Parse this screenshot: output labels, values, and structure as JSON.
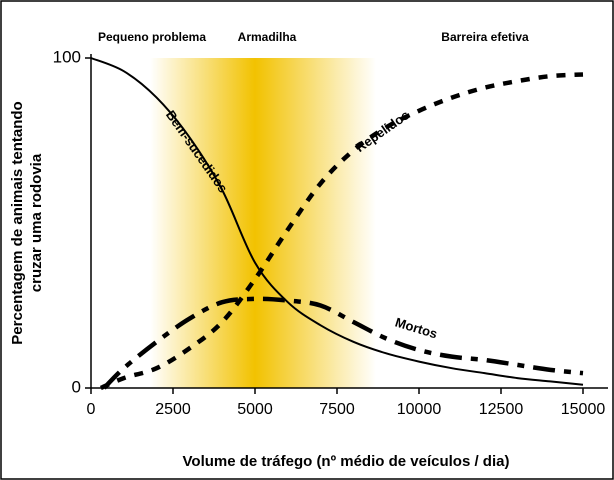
{
  "chart_data": {
    "type": "line",
    "xlabel": "Volume de tráfego (nº médio de veículos / dia)",
    "ylabel": [
      "Percentagem de animais tentando",
      "cruzar uma rodovia"
    ],
    "zones": [
      "Pequeno problema",
      "Armadilha",
      "Barreira efetiva"
    ],
    "highlight": {
      "from": 1800,
      "peak": 5000,
      "to": 8700,
      "color": "#f2c200"
    },
    "xlim": [
      0,
      15000
    ],
    "xticks": [
      0,
      2500,
      5000,
      7500,
      10000,
      12500,
      15000
    ],
    "ylim": [
      0,
      100
    ],
    "yticks": [
      0,
      100
    ],
    "series": [
      {
        "name": "Bem-sucedidos",
        "color": "#000000",
        "style": "solid",
        "x": [
          0,
          1000,
          2000,
          3000,
          4000,
          5000,
          6000,
          7000,
          8000,
          9000,
          10000,
          11000,
          12000,
          13000,
          14000,
          15000
        ],
        "values": [
          100,
          96,
          88,
          76,
          60,
          38,
          26,
          19,
          14,
          10.5,
          8,
          6,
          4.5,
          3,
          2,
          1
        ]
      },
      {
        "name": "Repelidos",
        "color": "#000000",
        "style": "dotted",
        "x": [
          300,
          1000,
          2000,
          3000,
          4000,
          5000,
          6000,
          7000,
          8000,
          9000,
          10000,
          11000,
          12000,
          13000,
          14000,
          15000
        ],
        "values": [
          0,
          3,
          6,
          12,
          20,
          33,
          48,
          62,
          72,
          79,
          84,
          88,
          91,
          93,
          94.5,
          95
        ]
      },
      {
        "name": "Mortos",
        "color": "#000000",
        "style": "dashdot",
        "x": [
          400,
          1000,
          2000,
          3000,
          4000,
          5000,
          6000,
          7000,
          8000,
          9000,
          10000,
          11000,
          12000,
          13000,
          14000,
          15000
        ],
        "values": [
          0,
          6,
          14,
          21,
          26,
          27,
          26.5,
          25,
          20,
          15,
          11.5,
          9.5,
          8.5,
          7,
          5.5,
          4.5
        ]
      }
    ]
  }
}
